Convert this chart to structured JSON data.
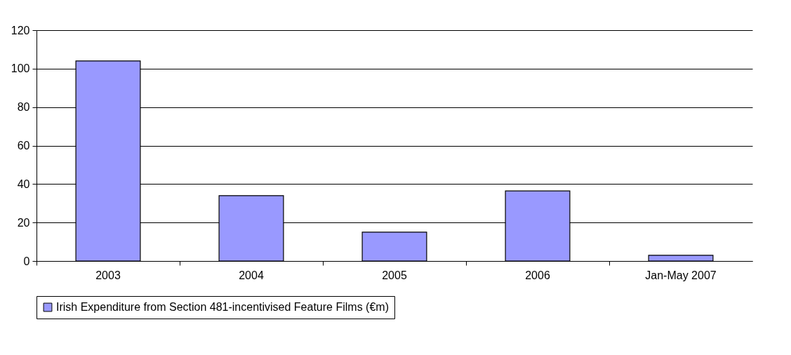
{
  "chart_data": {
    "type": "bar",
    "categories": [
      "2003",
      "2004",
      "2005",
      "2006",
      "Jan-May 2007"
    ],
    "series": [
      {
        "name": "Irish Expenditure from Section 481-incentivised Feature Films (€m)",
        "color": "#9999ff",
        "values": [
          104,
          34,
          15,
          36.4,
          3
        ]
      }
    ],
    "ylim": [
      0,
      120
    ],
    "yticks": [
      0,
      20,
      40,
      60,
      80,
      100,
      120
    ],
    "grid": "y",
    "legend": "bottom"
  }
}
